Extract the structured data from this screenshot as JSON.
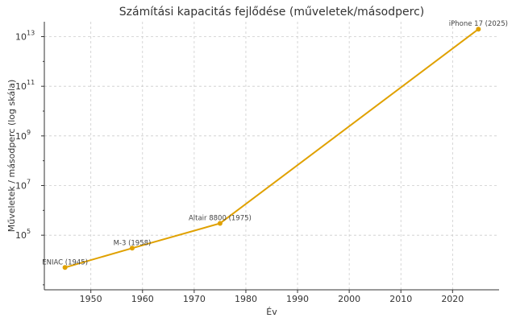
{
  "chart_data": {
    "type": "line",
    "title": "Számítási kapacitás fejlődése (műveletek/másodperc)",
    "xlabel": "Év",
    "ylabel": "Műveletek / másodperc (log skála)",
    "x_scale": "linear",
    "y_scale": "log",
    "xlim": [
      1941,
      2029
    ],
    "ylim_log10": [
      2.8,
      13.6
    ],
    "grid": true,
    "x_ticks": [
      1950,
      1960,
      1970,
      1980,
      1990,
      2000,
      2010,
      2020
    ],
    "y_ticks_exp": [
      5,
      7,
      9,
      11,
      13
    ],
    "line_color": "#e0a100",
    "series": [
      {
        "points": [
          {
            "x": 1945,
            "y": 5000,
            "label": "ENIAC (1945)"
          },
          {
            "x": 1958,
            "y": 30000,
            "label": "M-3 (1958)"
          },
          {
            "x": 1975,
            "y": 300000,
            "label": "Altair 8800 (1975)"
          },
          {
            "x": 2025,
            "y": 20000000000000,
            "label": "iPhone 17 (2025)"
          }
        ]
      }
    ]
  }
}
